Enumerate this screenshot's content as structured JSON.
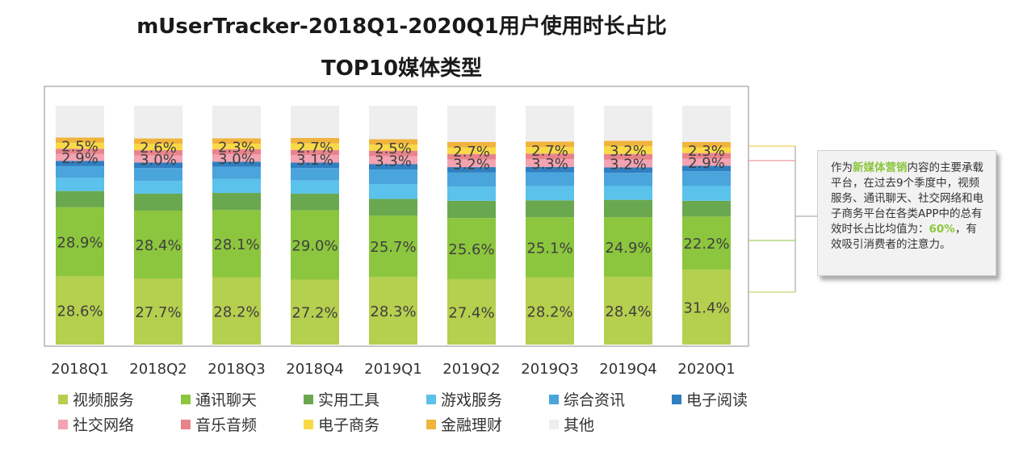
{
  "title_line1": "mUserTracker-2018Q1-2020Q1用户使用时长占比",
  "title_line2": "TOP10媒体类型",
  "callout": {
    "before": "作为",
    "highlight1": "新媒体营销",
    "middle": "内容的主要承载平台，在过去9个季度中，视频服务、通讯聊天、社交网络和电子商务平台在各类APP中的总有效时长占比均值为：",
    "highlight2": "60%",
    "after": "，有效吸引消费者的注意力。"
  },
  "chart_data": {
    "type": "bar",
    "stacked": true,
    "normalized_percent": true,
    "categories": [
      "2018Q1",
      "2018Q2",
      "2018Q3",
      "2018Q4",
      "2019Q1",
      "2019Q2",
      "2019Q3",
      "2019Q4",
      "2020Q1"
    ],
    "series": [
      {
        "name": "视频服务",
        "color": "#b5cf4e",
        "values": [
          28.6,
          27.7,
          28.2,
          27.2,
          28.3,
          27.4,
          28.2,
          28.4,
          31.4
        ],
        "labeled": true
      },
      {
        "name": "通讯聊天",
        "color": "#8cc63e",
        "values": [
          28.9,
          28.4,
          28.1,
          29.0,
          25.7,
          25.6,
          25.1,
          24.9,
          22.2
        ],
        "labeled": true
      },
      {
        "name": "实用工具",
        "color": "#6aa84f",
        "values": [
          6.8,
          7.1,
          7.2,
          7.0,
          7.0,
          7.2,
          7.1,
          7.3,
          6.6
        ]
      },
      {
        "name": "游戏服务",
        "color": "#5bc2ec",
        "values": [
          5.5,
          5.3,
          5.8,
          5.5,
          6.2,
          5.9,
          5.9,
          5.8,
          6.2
        ]
      },
      {
        "name": "综合资讯",
        "color": "#4aa5dc",
        "values": [
          4.9,
          5.4,
          5.1,
          5.2,
          6.1,
          5.9,
          5.8,
          5.5,
          6.2
        ]
      },
      {
        "name": "电子阅读",
        "color": "#2f7fc1",
        "values": [
          2.2,
          2.3,
          2.2,
          2.3,
          2.3,
          2.3,
          2.3,
          2.3,
          2.3
        ]
      },
      {
        "name": "社交网络",
        "color": "#f3a3b1",
        "values": [
          2.9,
          3.0,
          3.0,
          3.1,
          3.3,
          3.2,
          3.3,
          3.2,
          2.9
        ],
        "labeled": true
      },
      {
        "name": "音乐音频",
        "color": "#e9838b",
        "values": [
          2.2,
          2.2,
          2.2,
          2.2,
          2.3,
          2.3,
          2.3,
          2.4,
          2.4
        ]
      },
      {
        "name": "电子商务",
        "color": "#f9d946",
        "values": [
          2.5,
          2.6,
          2.3,
          2.7,
          2.5,
          2.7,
          2.7,
          3.2,
          2.3
        ],
        "labeled": true
      },
      {
        "name": "金融理财",
        "color": "#f0b33c",
        "values": [
          2.2,
          2.3,
          2.3,
          2.3,
          2.3,
          2.3,
          2.3,
          2.3,
          2.3
        ]
      },
      {
        "name": "其他",
        "color": "#eeeeee",
        "values": [
          13.3,
          13.7,
          13.6,
          13.5,
          14.0,
          15.2,
          15.0,
          14.7,
          15.2
        ]
      }
    ],
    "ylim": [
      0,
      100
    ],
    "legend_position": "bottom",
    "grid": false
  }
}
